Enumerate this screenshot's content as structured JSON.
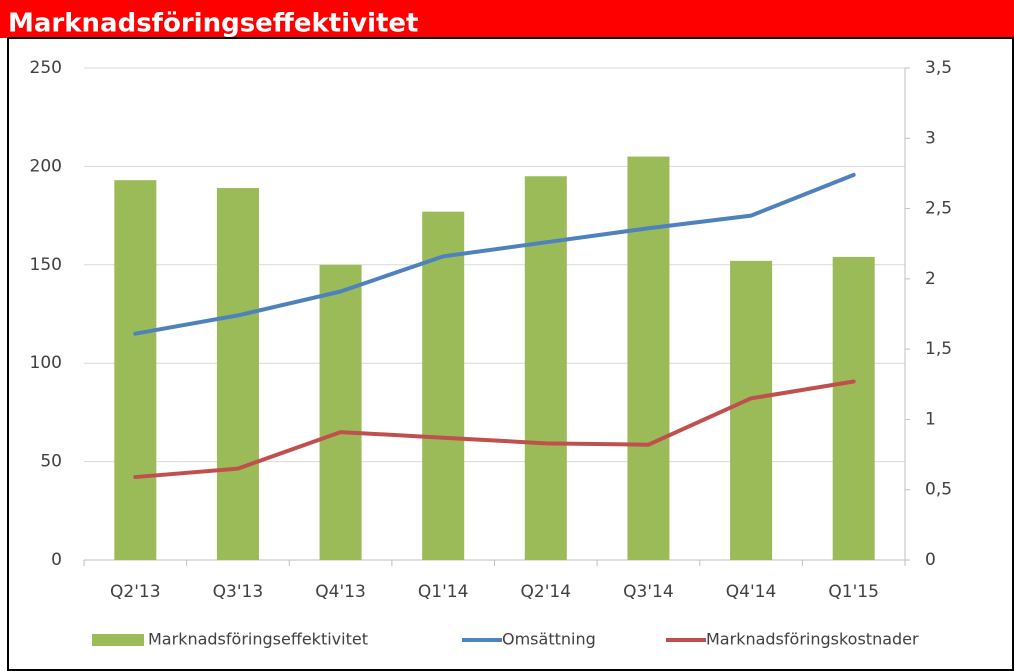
{
  "chart_data": {
    "type": "bar",
    "title": "Marknadsföringseffektivitet",
    "categories": [
      "Q2'13",
      "Q3'13",
      "Q4'13",
      "Q1'14",
      "Q2'14",
      "Q3'14",
      "Q4'14",
      "Q1'15"
    ],
    "series": [
      {
        "name": "Marknadsföringseffektivitet",
        "type": "bar",
        "color": "#9bbb59",
        "values": [
          193,
          189,
          150,
          177,
          195,
          205,
          152,
          154
        ]
      },
      {
        "name": "Omsättning",
        "type": "line",
        "axis": "y2",
        "color": "#4f81bd",
        "values": [
          1.61,
          1.74,
          1.91,
          2.16,
          2.26,
          2.36,
          2.45,
          2.74
        ]
      },
      {
        "name": "Marknadsföringskostnader",
        "type": "line",
        "axis": "y2",
        "color": "#c0504d",
        "values": [
          0.59,
          0.65,
          0.91,
          0.87,
          0.83,
          0.82,
          1.15,
          1.27
        ]
      }
    ],
    "ylim": [
      0,
      250
    ],
    "yticks": [
      0,
      50,
      100,
      150,
      200,
      250
    ],
    "y2lim": [
      0,
      3.5
    ],
    "y2ticks": [
      0,
      {
        "value": 0.5,
        "label": "0,5"
      },
      1,
      {
        "value": 1.5,
        "label": "1,5"
      },
      2,
      {
        "value": 2.5,
        "label": "2,5"
      },
      3,
      {
        "value": 3.5,
        "label": "3,5"
      }
    ],
    "grid": true,
    "legend": "bottom"
  }
}
